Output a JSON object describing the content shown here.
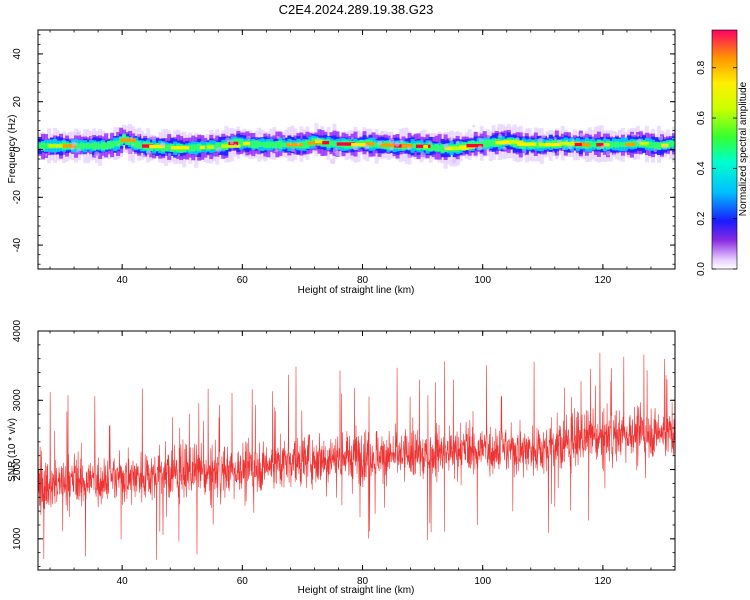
{
  "title": "C2E4.2024.289.19.38.G23",
  "chart_data": [
    {
      "type": "heatmap",
      "xlabel": "Height of straight line (km)",
      "ylabel": "Frequency (Hz)",
      "xlim": [
        26,
        132
      ],
      "ylim": [
        -50,
        50
      ],
      "xticks": [
        40,
        60,
        80,
        100,
        120
      ],
      "yticks": [
        -40,
        -20,
        0,
        20,
        40
      ],
      "colorbar": {
        "label": "Normalized spectral amplitude",
        "range": [
          0.0,
          0.95
        ],
        "ticks": [
          0.0,
          0.2,
          0.4,
          0.6,
          0.8
        ]
      },
      "ridge": {
        "x": [
          26,
          30,
          34,
          37,
          39,
          40,
          41,
          43,
          46,
          50,
          54,
          57,
          58,
          60,
          63,
          66,
          70,
          72,
          74,
          78,
          80,
          82,
          85,
          88,
          91,
          93,
          95,
          97,
          100,
          103,
          104,
          106,
          110,
          113,
          116,
          120,
          123,
          126,
          129,
          132
        ],
        "frequency_hz": [
          1.5,
          1.5,
          1.5,
          1.5,
          2.5,
          4.5,
          3,
          1.5,
          1,
          0.5,
          1,
          1.5,
          3,
          2.5,
          2,
          2,
          2,
          3.5,
          2.5,
          2,
          2.5,
          2,
          1.5,
          1.5,
          1,
          0.5,
          0.5,
          1.5,
          2.5,
          3,
          3.5,
          2,
          2,
          2.5,
          2,
          2,
          2,
          2.5,
          1.5,
          2.5
        ]
      }
    },
    {
      "type": "line",
      "xlabel": "Height of straight line (km)",
      "ylabel": "SNR (10 * v/v)",
      "xlim": [
        26,
        132
      ],
      "ylim": [
        550,
        4000
      ],
      "xticks": [
        40,
        60,
        80,
        100,
        120
      ],
      "yticks": [
        1000,
        2000,
        3000,
        4000
      ],
      "color": "#ee3333",
      "series_trend": {
        "x": [
          26,
          40,
          50,
          60,
          70,
          80,
          90,
          100,
          110,
          120,
          132
        ],
        "mean_snr": [
          1750,
          1900,
          1950,
          2000,
          2150,
          2200,
          2200,
          2300,
          2300,
          2500,
          2550
        ]
      }
    }
  ]
}
